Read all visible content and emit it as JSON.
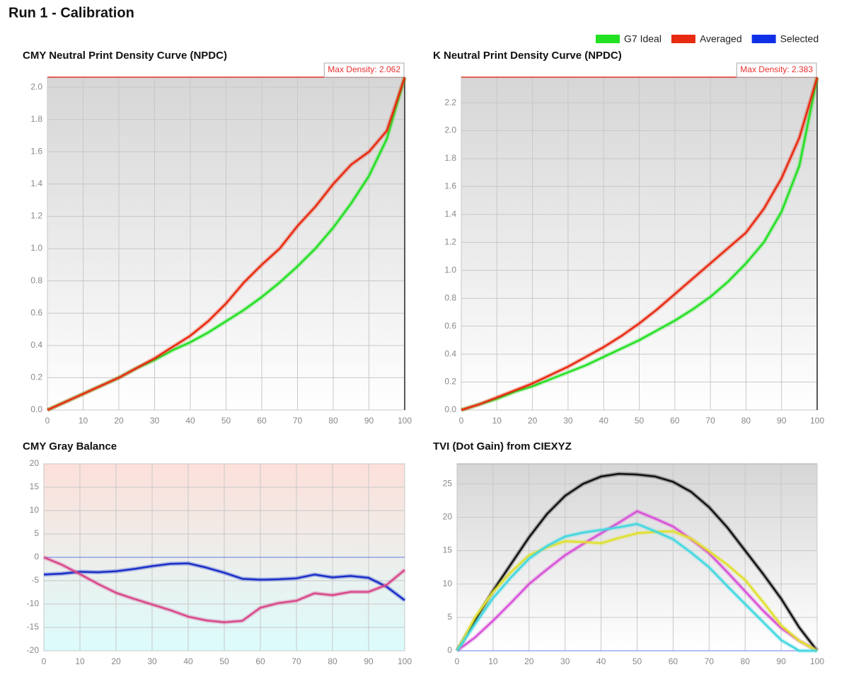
{
  "page_title": "Run 1 - Calibration",
  "legend": [
    {
      "name": "G7 Ideal",
      "color": "#22e022"
    },
    {
      "name": "Averaged",
      "color": "#e82a10"
    },
    {
      "name": "Selected",
      "color": "#1030e8"
    }
  ],
  "chart_data": [
    {
      "type": "line",
      "title": "CMY Neutral Print Density Curve (NPDC)",
      "background": [
        "#d6d6d6",
        "#ffffff"
      ],
      "max_density": 2.062,
      "max_density_label": "Max Density: 2.062",
      "x": [
        0,
        5,
        10,
        15,
        20,
        25,
        30,
        35,
        40,
        45,
        50,
        55,
        60,
        65,
        70,
        75,
        80,
        85,
        90,
        95,
        100
      ],
      "xlim": [
        0,
        100
      ],
      "xticks": [
        0,
        10,
        20,
        30,
        40,
        50,
        60,
        70,
        80,
        90,
        100
      ],
      "ylim": [
        0,
        2.062
      ],
      "yticks": [
        {
          "value": 0,
          "label": "0.0"
        },
        {
          "value": 0.2,
          "label": "0.2"
        },
        {
          "value": 0.4,
          "label": "0.4"
        },
        {
          "value": 0.6,
          "label": "0.6"
        },
        {
          "value": 0.8,
          "label": "0.8"
        },
        {
          "value": 1.0,
          "label": "1.0"
        },
        {
          "value": 1.2,
          "label": "1.2"
        },
        {
          "value": 1.4,
          "label": "1.4"
        },
        {
          "value": 1.6,
          "label": "1.6"
        },
        {
          "value": 1.8,
          "label": "1.8"
        },
        {
          "value": 2.0,
          "label": "2.0"
        }
      ],
      "grid": true,
      "series": [
        {
          "name": "G7 Ideal",
          "color": "#22e022",
          "values": [
            0,
            0.05,
            0.1,
            0.15,
            0.2,
            0.26,
            0.31,
            0.37,
            0.42,
            0.48,
            0.55,
            0.62,
            0.7,
            0.79,
            0.89,
            1.0,
            1.13,
            1.28,
            1.45,
            1.68,
            2.06
          ]
        },
        {
          "name": "Averaged",
          "color": "#e82a10",
          "values": [
            0,
            0.05,
            0.1,
            0.15,
            0.2,
            0.26,
            0.32,
            0.39,
            0.46,
            0.55,
            0.66,
            0.79,
            0.9,
            1.0,
            1.14,
            1.26,
            1.4,
            1.52,
            1.6,
            1.73,
            2.06
          ]
        }
      ]
    },
    {
      "type": "line",
      "title": "K Neutral Print Density Curve (NPDC)",
      "background": [
        "#d6d6d6",
        "#ffffff"
      ],
      "max_density": 2.383,
      "max_density_label": "Max Density: 2.383",
      "x": [
        0,
        5,
        10,
        15,
        20,
        25,
        30,
        35,
        40,
        45,
        50,
        55,
        60,
        65,
        70,
        75,
        80,
        85,
        90,
        95,
        100
      ],
      "xlim": [
        0,
        100
      ],
      "xticks": [
        0,
        10,
        20,
        30,
        40,
        50,
        60,
        70,
        80,
        90,
        100
      ],
      "ylim": [
        0,
        2.383
      ],
      "yticks": [
        {
          "value": 0,
          "label": "0.0"
        },
        {
          "value": 0.2,
          "label": "0.2"
        },
        {
          "value": 0.4,
          "label": "0.4"
        },
        {
          "value": 0.6,
          "label": "0.6"
        },
        {
          "value": 0.8,
          "label": "0.8"
        },
        {
          "value": 1.0,
          "label": "1.0"
        },
        {
          "value": 1.2,
          "label": "1.2"
        },
        {
          "value": 1.4,
          "label": "1.4"
        },
        {
          "value": 1.6,
          "label": "1.6"
        },
        {
          "value": 1.8,
          "label": "1.8"
        },
        {
          "value": 2.0,
          "label": "2.0"
        },
        {
          "value": 2.2,
          "label": "2.2"
        }
      ],
      "grid": true,
      "series": [
        {
          "name": "G7 Ideal",
          "color": "#22e022",
          "values": [
            0,
            0.04,
            0.08,
            0.13,
            0.17,
            0.22,
            0.27,
            0.32,
            0.38,
            0.44,
            0.5,
            0.57,
            0.64,
            0.72,
            0.81,
            0.92,
            1.05,
            1.2,
            1.42,
            1.75,
            2.38
          ]
        },
        {
          "name": "Averaged",
          "color": "#e82a10",
          "values": [
            0,
            0.04,
            0.09,
            0.14,
            0.19,
            0.25,
            0.31,
            0.38,
            0.45,
            0.53,
            0.62,
            0.72,
            0.83,
            0.94,
            1.05,
            1.16,
            1.27,
            1.44,
            1.66,
            1.95,
            2.38
          ]
        }
      ]
    },
    {
      "type": "line",
      "title": "CMY Gray Balance",
      "background": [
        "#fde0da",
        "#dcfcfc"
      ],
      "zero_line": "#6a78e8",
      "x": [
        0,
        5,
        10,
        15,
        20,
        25,
        30,
        35,
        40,
        45,
        50,
        55,
        60,
        65,
        70,
        75,
        80,
        85,
        90,
        95,
        100
      ],
      "xlim": [
        0,
        100
      ],
      "xticks": [
        0,
        10,
        20,
        30,
        40,
        50,
        60,
        70,
        80,
        90,
        100
      ],
      "ylim": [
        -20,
        20
      ],
      "yticks": [
        -20,
        -15,
        -10,
        -5,
        0,
        5,
        10,
        15,
        20
      ],
      "grid": true,
      "series": [
        {
          "color": "#1a2ec8",
          "values": [
            -3.7,
            -3.5,
            -3.1,
            -3.2,
            -3.0,
            -2.5,
            -1.9,
            -1.4,
            -1.3,
            -2.2,
            -3.3,
            -4.6,
            -4.8,
            -4.7,
            -4.5,
            -3.7,
            -4.3,
            -4.0,
            -4.4,
            -6.3,
            -9.2
          ]
        },
        {
          "color": "#d8488a",
          "values": [
            0,
            -1.6,
            -3.6,
            -5.7,
            -7.6,
            -8.9,
            -10.1,
            -11.3,
            -12.7,
            -13.5,
            -13.9,
            -13.6,
            -10.8,
            -9.8,
            -9.3,
            -7.7,
            -8.1,
            -7.4,
            -7.4,
            -5.9,
            -2.7
          ]
        }
      ]
    },
    {
      "type": "line",
      "title": "TVI (Dot Gain) from CIEXYZ",
      "background": [
        "#d6d6d6",
        "#ffffff"
      ],
      "zero_line": "#6a78e8",
      "x": [
        0,
        5,
        10,
        15,
        20,
        25,
        30,
        35,
        40,
        45,
        50,
        55,
        60,
        65,
        70,
        75,
        80,
        85,
        90,
        95,
        100
      ],
      "xlim": [
        0,
        100
      ],
      "xticks": [
        0,
        10,
        20,
        30,
        40,
        50,
        60,
        70,
        80,
        90,
        100
      ],
      "ylim": [
        0,
        28
      ],
      "yticks": [
        0,
        5,
        10,
        15,
        20,
        25
      ],
      "grid": true,
      "series": [
        {
          "color": "#111111",
          "values": [
            0,
            4.5,
            9,
            13,
            17,
            20.5,
            23.2,
            25,
            26.1,
            26.5,
            26.4,
            26.1,
            25.3,
            23.8,
            21.5,
            18.5,
            15,
            11.5,
            7.8,
            3.5,
            0
          ]
        },
        {
          "color": "#d850d8",
          "values": [
            0,
            2,
            4.5,
            7.2,
            10,
            12.2,
            14.3,
            16,
            17.6,
            19.2,
            20.9,
            19.8,
            18.6,
            16.7,
            14.6,
            11.8,
            8.9,
            6,
            3.4,
            1.5,
            0
          ]
        },
        {
          "color": "#e0e030",
          "values": [
            0,
            5,
            8.8,
            11.8,
            14.3,
            15.5,
            16.4,
            16.3,
            16.1,
            16.9,
            17.6,
            17.8,
            17.9,
            16.8,
            14.9,
            12.9,
            10.6,
            7.3,
            3.8,
            1.5,
            0
          ]
        },
        {
          "color": "#40d8e0",
          "values": [
            0,
            4,
            7.9,
            11,
            13.8,
            15.7,
            17.1,
            17.7,
            18.1,
            18.5,
            19,
            17.9,
            16.7,
            14.7,
            12.5,
            9.7,
            7,
            4.3,
            1.6,
            0,
            0
          ]
        }
      ]
    }
  ]
}
